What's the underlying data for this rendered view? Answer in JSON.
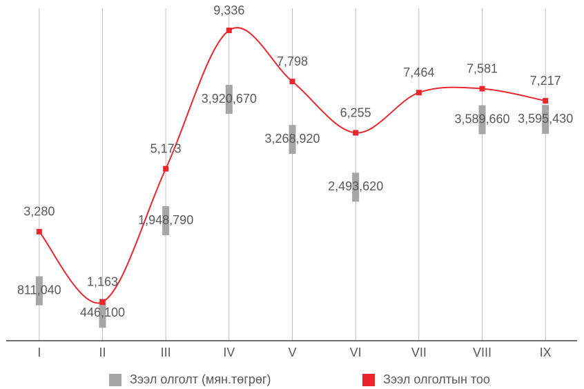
{
  "chart_data": {
    "type": "bar-line",
    "categories": [
      "I",
      "II",
      "III",
      "IV",
      "V",
      "VI",
      "VII",
      "VIII",
      "IX"
    ],
    "series": [
      {
        "name": "Зээл олголт (мян.төгрөг)",
        "color": "#a6a6a6",
        "axis": "y2",
        "type": "bar",
        "values": [
          811040,
          446100,
          1948790,
          3920670,
          3268920,
          2493620,
          null,
          3589660,
          3595430
        ],
        "value_labels": [
          "811,040",
          "446,100",
          "1,948,790",
          "3,920,670",
          "3,268,920",
          "2,493,620",
          null,
          "3,589,660",
          "3,595,430"
        ]
      },
      {
        "name": "Зээл олголтын тоо",
        "color": "#e8262b",
        "type": "line",
        "values": [
          3280,
          1163,
          5173,
          9336,
          7798,
          6255,
          7464,
          7581,
          7217
        ],
        "value_labels": [
          "3,280",
          "1,163",
          "5,173",
          "9,336",
          "7,798",
          "6,255",
          "7,464",
          "7,581",
          "7,217"
        ]
      }
    ],
    "ylim": [
      0,
      10000
    ],
    "y2lim": [
      0,
      5400000
    ],
    "grid": true,
    "legend": "bottom"
  }
}
